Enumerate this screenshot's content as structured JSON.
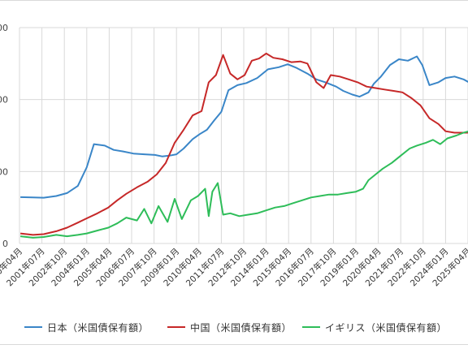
{
  "chart_data": {
    "type": "line",
    "title": "",
    "xlabel": "",
    "ylabel": "",
    "y_tick_labels": [
      "00",
      "00",
      "00",
      "0"
    ],
    "x_tick_labels": [
      "2000年04月",
      "2001年07月",
      "2002年10月",
      "2004年01月",
      "2005年04月",
      "2006年07月",
      "2007年10月",
      "2009年01月",
      "2010年04月",
      "2011年07月",
      "2012年10月",
      "2014年01月",
      "2015年04月",
      "2016年07月",
      "2017年10月",
      "2019年01月",
      "2020年04月",
      "2021年07月",
      "2022年10月",
      "2024年01月",
      "2025年04月"
    ],
    "x_range": [
      "2000年04月",
      "2025年04月"
    ],
    "grid": true,
    "legend_position": "bottom",
    "series": [
      {
        "name": "日本（米国債保有額）",
        "color": "#3a86c8",
        "points": [
          [
            2000.3,
            322
          ],
          [
            2001.0,
            320
          ],
          [
            2001.6,
            318
          ],
          [
            2002.3,
            330
          ],
          [
            2002.9,
            350
          ],
          [
            2003.5,
            400
          ],
          [
            2004.0,
            530
          ],
          [
            2004.4,
            690
          ],
          [
            2005.0,
            680
          ],
          [
            2005.5,
            650
          ],
          [
            2006.0,
            640
          ],
          [
            2006.6,
            625
          ],
          [
            2007.2,
            620
          ],
          [
            2007.8,
            615
          ],
          [
            2008.2,
            605
          ],
          [
            2008.6,
            610
          ],
          [
            2009.0,
            620
          ],
          [
            2009.4,
            660
          ],
          [
            2009.9,
            725
          ],
          [
            2010.3,
            760
          ],
          [
            2010.7,
            790
          ],
          [
            2011.1,
            855
          ],
          [
            2011.5,
            915
          ],
          [
            2011.9,
            1065
          ],
          [
            2012.4,
            1100
          ],
          [
            2012.9,
            1115
          ],
          [
            2013.5,
            1150
          ],
          [
            2014.1,
            1210
          ],
          [
            2014.7,
            1225
          ],
          [
            2015.2,
            1245
          ],
          [
            2015.7,
            1220
          ],
          [
            2016.3,
            1180
          ],
          [
            2016.8,
            1140
          ],
          [
            2017.3,
            1120
          ],
          [
            2017.9,
            1090
          ],
          [
            2018.3,
            1060
          ],
          [
            2018.8,
            1035
          ],
          [
            2019.2,
            1020
          ],
          [
            2019.7,
            1050
          ],
          [
            2020.0,
            1110
          ],
          [
            2020.4,
            1160
          ],
          [
            2020.9,
            1240
          ],
          [
            2021.4,
            1280
          ],
          [
            2021.9,
            1270
          ],
          [
            2022.4,
            1300
          ],
          [
            2022.7,
            1240
          ],
          [
            2023.1,
            1100
          ],
          [
            2023.6,
            1120
          ],
          [
            2024.0,
            1150
          ],
          [
            2024.5,
            1160
          ],
          [
            2025.0,
            1140
          ],
          [
            2025.3,
            1120
          ]
        ]
      },
      {
        "name": "中国（米国債保有額）",
        "color": "#c62828",
        "points": [
          [
            2000.3,
            70
          ],
          [
            2001.0,
            60
          ],
          [
            2001.6,
            65
          ],
          [
            2002.3,
            85
          ],
          [
            2002.9,
            110
          ],
          [
            2003.5,
            145
          ],
          [
            2004.0,
            175
          ],
          [
            2004.6,
            210
          ],
          [
            2005.2,
            250
          ],
          [
            2005.7,
            300
          ],
          [
            2006.2,
            345
          ],
          [
            2006.8,
            390
          ],
          [
            2007.4,
            430
          ],
          [
            2007.9,
            480
          ],
          [
            2008.4,
            560
          ],
          [
            2008.9,
            700
          ],
          [
            2009.4,
            790
          ],
          [
            2009.9,
            890
          ],
          [
            2010.4,
            920
          ],
          [
            2010.8,
            1120
          ],
          [
            2011.2,
            1170
          ],
          [
            2011.6,
            1310
          ],
          [
            2012.0,
            1180
          ],
          [
            2012.4,
            1140
          ],
          [
            2012.8,
            1170
          ],
          [
            2013.2,
            1270
          ],
          [
            2013.6,
            1285
          ],
          [
            2014.0,
            1320
          ],
          [
            2014.4,
            1290
          ],
          [
            2014.9,
            1280
          ],
          [
            2015.4,
            1260
          ],
          [
            2015.9,
            1265
          ],
          [
            2016.3,
            1250
          ],
          [
            2016.8,
            1120
          ],
          [
            2017.2,
            1080
          ],
          [
            2017.6,
            1170
          ],
          [
            2018.1,
            1160
          ],
          [
            2018.6,
            1140
          ],
          [
            2019.1,
            1120
          ],
          [
            2019.6,
            1090
          ],
          [
            2020.1,
            1080
          ],
          [
            2020.6,
            1070
          ],
          [
            2021.1,
            1060
          ],
          [
            2021.6,
            1050
          ],
          [
            2022.1,
            1010
          ],
          [
            2022.6,
            960
          ],
          [
            2023.1,
            870
          ],
          [
            2023.6,
            830
          ],
          [
            2024.0,
            780
          ],
          [
            2024.5,
            770
          ],
          [
            2025.0,
            770
          ],
          [
            2025.3,
            770
          ]
        ]
      },
      {
        "name": "イギリス（米国債保有額）",
        "color": "#2ebd59",
        "points": [
          [
            2000.3,
            50
          ],
          [
            2001.0,
            40
          ],
          [
            2001.6,
            45
          ],
          [
            2002.3,
            60
          ],
          [
            2002.9,
            50
          ],
          [
            2003.5,
            60
          ],
          [
            2004.0,
            70
          ],
          [
            2004.6,
            90
          ],
          [
            2005.2,
            110
          ],
          [
            2005.7,
            140
          ],
          [
            2006.2,
            180
          ],
          [
            2006.8,
            160
          ],
          [
            2007.2,
            240
          ],
          [
            2007.6,
            140
          ],
          [
            2008.0,
            260
          ],
          [
            2008.5,
            150
          ],
          [
            2008.9,
            310
          ],
          [
            2009.3,
            170
          ],
          [
            2009.8,
            300
          ],
          [
            2010.2,
            330
          ],
          [
            2010.6,
            380
          ],
          [
            2010.8,
            190
          ],
          [
            2011.0,
            360
          ],
          [
            2011.3,
            420
          ],
          [
            2011.6,
            200
          ],
          [
            2012.0,
            210
          ],
          [
            2012.5,
            190
          ],
          [
            2013.0,
            200
          ],
          [
            2013.5,
            210
          ],
          [
            2014.0,
            230
          ],
          [
            2014.5,
            250
          ],
          [
            2015.0,
            260
          ],
          [
            2015.5,
            280
          ],
          [
            2016.0,
            300
          ],
          [
            2016.5,
            320
          ],
          [
            2017.0,
            330
          ],
          [
            2017.5,
            340
          ],
          [
            2018.0,
            340
          ],
          [
            2018.5,
            350
          ],
          [
            2019.0,
            360
          ],
          [
            2019.4,
            380
          ],
          [
            2019.7,
            440
          ],
          [
            2020.1,
            480
          ],
          [
            2020.5,
            520
          ],
          [
            2021.0,
            560
          ],
          [
            2021.5,
            610
          ],
          [
            2022.0,
            660
          ],
          [
            2022.4,
            680
          ],
          [
            2022.9,
            700
          ],
          [
            2023.3,
            720
          ],
          [
            2023.7,
            690
          ],
          [
            2024.1,
            730
          ],
          [
            2024.6,
            750
          ],
          [
            2025.0,
            770
          ],
          [
            2025.3,
            780
          ]
        ]
      }
    ]
  }
}
